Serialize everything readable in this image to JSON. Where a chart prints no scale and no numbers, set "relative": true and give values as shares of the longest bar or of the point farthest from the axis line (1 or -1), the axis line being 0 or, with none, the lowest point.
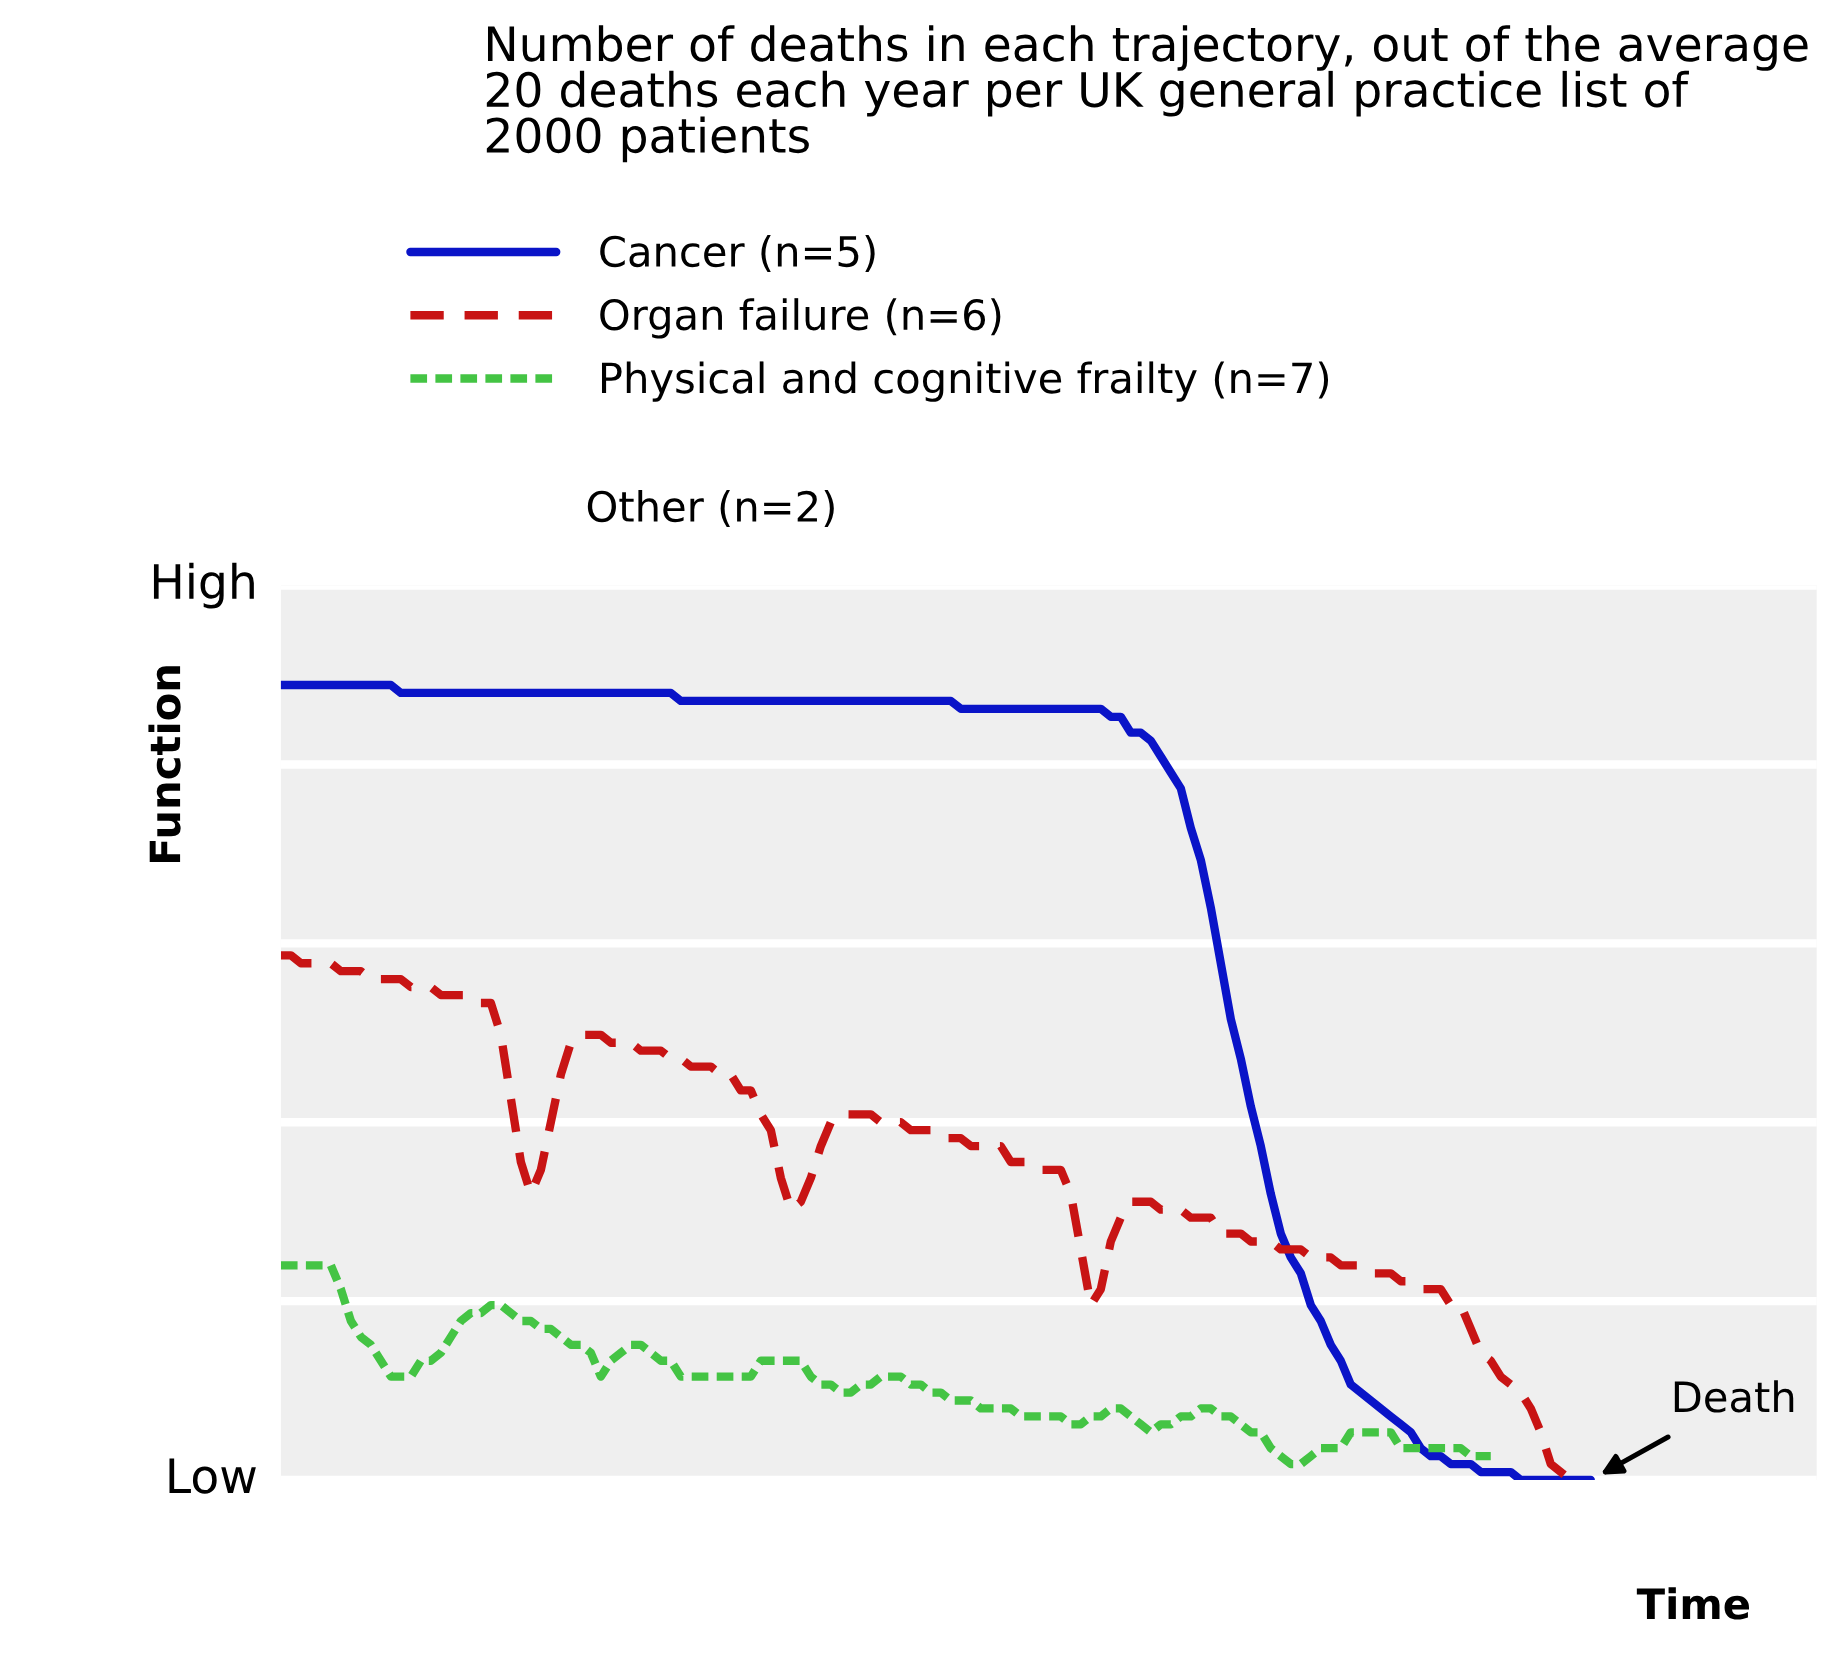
{
  "chart_data": {
    "type": "line",
    "title": "Number of deaths in each trajectory, out of the average 20 deaths each year per UK general practice list of 2000 patients",
    "xlabel": "Time",
    "ylabel": "Function",
    "categories": [
      null,
      null,
      null,
      null,
      null,
      null,
      null,
      null,
      null,
      null,
      null,
      null,
      null,
      null,
      null,
      null,
      null,
      null,
      null,
      null,
      null,
      null,
      null,
      null,
      null,
      null,
      null,
      null,
      null,
      null,
      null,
      null,
      null,
      null,
      null,
      null,
      null,
      null,
      null,
      null,
      null,
      null,
      null,
      null,
      null,
      null,
      null,
      null,
      null,
      null,
      null,
      null,
      null,
      null,
      null,
      null,
      null,
      null,
      null,
      null,
      null,
      null,
      null,
      null,
      null,
      null,
      null,
      null,
      null,
      null,
      null,
      null,
      null,
      null,
      null,
      null,
      null,
      null,
      null,
      null,
      null,
      null,
      null,
      null,
      null,
      null,
      null,
      null,
      null,
      null,
      null,
      null,
      null,
      null,
      null,
      null,
      null,
      null,
      null,
      null,
      null,
      null,
      null,
      null,
      null,
      null,
      null,
      null,
      null,
      null,
      null,
      null,
      null,
      null,
      null,
      null,
      null,
      null,
      null,
      null,
      null,
      null,
      null,
      null,
      null,
      null,
      null,
      null,
      null,
      null,
      null,
      null
    ],
    "relative": true,
    "grid": "y",
    "legend": "top",
    "series": [
      {
        "name": "Cancer (n=5)",
        "color": "#0a14c8",
        "line_style": "solid",
        "values": [
          1,
          1,
          1,
          1,
          1,
          1,
          1,
          1,
          1,
          1,
          1,
          1,
          0.99,
          0.99,
          0.99,
          0.99,
          0.99,
          0.99,
          0.99,
          0.99,
          0.99,
          0.99,
          0.99,
          0.99,
          0.99,
          0.99,
          0.99,
          0.99,
          0.99,
          0.99,
          0.99,
          0.99,
          0.99,
          0.99,
          0.99,
          0.99,
          0.99,
          0.99,
          0.99,
          0.99,
          0.98,
          0.98,
          0.98,
          0.98,
          0.98,
          0.98,
          0.98,
          0.98,
          0.98,
          0.98,
          0.98,
          0.98,
          0.98,
          0.98,
          0.98,
          0.98,
          0.98,
          0.98,
          0.98,
          0.98,
          0.98,
          0.98,
          0.98,
          0.98,
          0.98,
          0.98,
          0.98,
          0.98,
          0.97,
          0.97,
          0.97,
          0.97,
          0.97,
          0.97,
          0.97,
          0.97,
          0.97,
          0.97,
          0.97,
          0.97,
          0.97,
          0.97,
          0.97,
          0.96,
          0.96,
          0.94,
          0.94,
          0.93,
          0.91,
          0.89,
          0.87,
          0.82,
          0.78,
          0.72,
          0.65,
          0.58,
          0.53,
          0.47,
          0.42,
          0.36,
          0.31,
          0.28,
          0.26,
          0.22,
          0.2,
          0.17,
          0.15,
          0.12,
          0.11,
          0.1,
          0.09,
          0.08,
          0.07,
          0.06,
          0.04,
          0.03,
          0.03,
          0.02,
          0.02,
          0.02,
          0.01,
          0.01,
          0.01,
          0.01,
          0,
          0,
          0,
          0,
          0,
          0,
          0,
          0
        ]
      },
      {
        "name": "Organ failure (n=6)",
        "color": "#c81414",
        "line_style": "dashed",
        "values": [
          0.66,
          0.66,
          0.65,
          0.65,
          0.65,
          0.65,
          0.64,
          0.64,
          0.64,
          0.63,
          0.63,
          0.63,
          0.63,
          0.62,
          0.62,
          0.62,
          0.61,
          0.61,
          0.61,
          0.61,
          0.6,
          0.6,
          0.56,
          0.48,
          0.4,
          0.36,
          0.39,
          0.45,
          0.51,
          0.55,
          0.56,
          0.56,
          0.56,
          0.55,
          0.55,
          0.55,
          0.54,
          0.54,
          0.54,
          0.53,
          0.53,
          0.52,
          0.52,
          0.52,
          0.51,
          0.51,
          0.49,
          0.49,
          0.46,
          0.44,
          0.38,
          0.34,
          0.35,
          0.38,
          0.42,
          0.45,
          0.46,
          0.46,
          0.46,
          0.46,
          0.45,
          0.45,
          0.45,
          0.44,
          0.44,
          0.44,
          0.43,
          0.43,
          0.43,
          0.42,
          0.42,
          0.42,
          0.42,
          0.4,
          0.4,
          0.4,
          0.39,
          0.39,
          0.39,
          0.36,
          0.29,
          0.22,
          0.24,
          0.3,
          0.33,
          0.35,
          0.35,
          0.35,
          0.34,
          0.34,
          0.34,
          0.33,
          0.33,
          0.33,
          0.31,
          0.31,
          0.31,
          0.3,
          0.3,
          0.3,
          0.29,
          0.29,
          0.29,
          0.28,
          0.28,
          0.28,
          0.27,
          0.27,
          0.27,
          0.26,
          0.26,
          0.26,
          0.25,
          0.25,
          0.24,
          0.24,
          0.24,
          0.22,
          0.22,
          0.19,
          0.16,
          0.15,
          0.13,
          0.12,
          0.11,
          0.09,
          0.06,
          0.02,
          0.01,
          0,
          null,
          null
        ]
      },
      {
        "name": "Physical and cognitive frailty (n=7)",
        "color": "#44c444",
        "line_style": "dotted",
        "values": [
          0.27,
          0.27,
          0.27,
          0.27,
          0.27,
          0.27,
          0.24,
          0.2,
          0.18,
          0.17,
          0.15,
          0.13,
          0.13,
          0.13,
          0.15,
          0.15,
          0.16,
          0.18,
          0.2,
          0.21,
          0.21,
          0.22,
          0.22,
          0.21,
          0.2,
          0.2,
          0.19,
          0.19,
          0.18,
          0.17,
          0.17,
          0.16,
          0.13,
          0.15,
          0.16,
          0.17,
          0.17,
          0.16,
          0.15,
          0.15,
          0.13,
          0.13,
          0.13,
          0.13,
          0.13,
          0.13,
          0.13,
          0.13,
          0.15,
          0.15,
          0.15,
          0.15,
          0.15,
          0.13,
          0.12,
          0.12,
          0.11,
          0.11,
          0.12,
          0.12,
          0.13,
          0.13,
          0.13,
          0.12,
          0.12,
          0.11,
          0.11,
          0.1,
          0.1,
          0.1,
          0.09,
          0.09,
          0.09,
          0.09,
          0.08,
          0.08,
          0.08,
          0.08,
          0.08,
          0.07,
          0.07,
          0.08,
          0.08,
          0.09,
          0.09,
          0.08,
          0.07,
          0.06,
          0.07,
          0.07,
          0.08,
          0.08,
          0.09,
          0.09,
          0.08,
          0.08,
          0.07,
          0.06,
          0.06,
          0.04,
          0.03,
          0.02,
          0.02,
          0.03,
          0.04,
          0.04,
          0.04,
          0.06,
          0.06,
          0.06,
          0.06,
          0.06,
          0.04,
          0.04,
          0.04,
          0.04,
          0.04,
          0.04,
          0.04,
          0.03,
          0.03,
          0.03,
          null,
          null,
          null,
          null,
          null,
          null,
          null,
          null,
          null,
          null
        ]
      }
    ],
    "annotations": [
      "Other (n=2)",
      "High",
      "Low",
      "Death"
    ]
  }
}
